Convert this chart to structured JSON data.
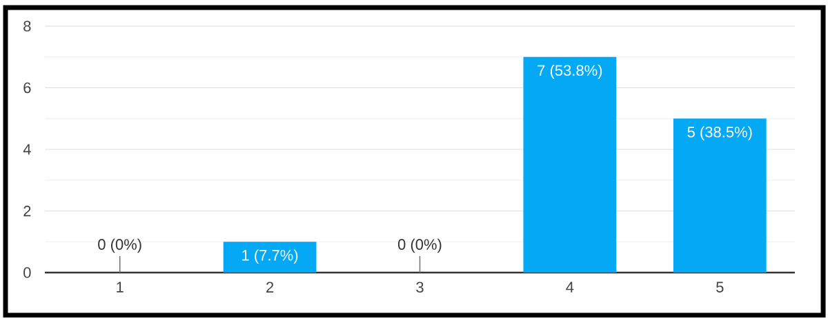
{
  "chart_data": {
    "type": "bar",
    "categories": [
      "1",
      "2",
      "3",
      "4",
      "5"
    ],
    "values": [
      0,
      1,
      0,
      7,
      5
    ],
    "color": "#03a9f4",
    "value_labels": [
      "0 (0%)",
      "1 (7.7%)",
      "0 (0%)",
      "7 (53.8%)",
      "5 (38.5%)"
    ],
    "ylim": [
      0,
      8
    ],
    "yticks": [
      0,
      {
        "value": 1,
        "label": null
      },
      2,
      {
        "value": 3,
        "label": null
      },
      4,
      {
        "value": 5,
        "label": null
      },
      6,
      {
        "value": 7,
        "label": null
      },
      8
    ],
    "grid": "y"
  }
}
